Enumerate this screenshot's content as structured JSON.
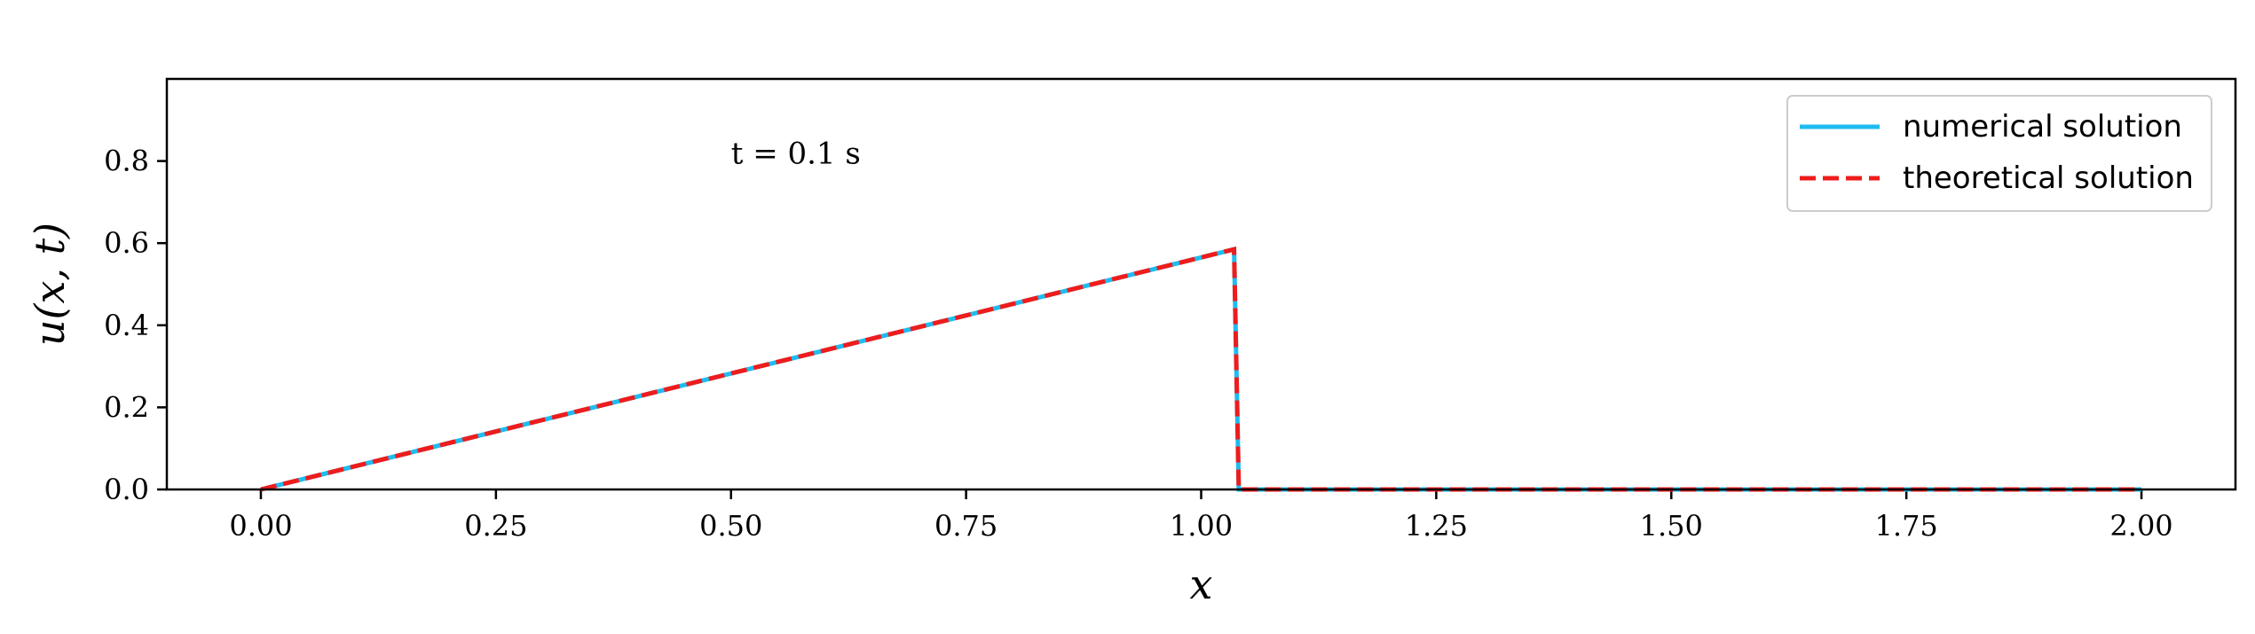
{
  "chart_data": {
    "type": "line",
    "xlabel": "x",
    "ylabel": "u(x, t)",
    "annotation": "t = 0.1 s",
    "annotation_at": {
      "x": 0.5,
      "y": 0.82
    },
    "xlim": [
      -0.1,
      2.1
    ],
    "ylim": [
      0.0,
      1.0
    ],
    "xticks": [
      0.0,
      0.25,
      0.5,
      0.75,
      1.0,
      1.25,
      1.5,
      1.75,
      2.0
    ],
    "xtick_labels": [
      "0.00",
      "0.25",
      "0.50",
      "0.75",
      "1.00",
      "1.25",
      "1.50",
      "1.75",
      "2.00"
    ],
    "yticks": [
      0.0,
      0.2,
      0.4,
      0.6,
      0.8
    ],
    "ytick_labels": [
      "0.0",
      "0.2",
      "0.4",
      "0.6",
      "0.8"
    ],
    "grid": false,
    "legend_position": "top-right",
    "series": [
      {
        "name": "numerical solution",
        "color": "#1ebcf0",
        "style": "solid",
        "x": [
          0.0,
          1.035,
          1.04,
          2.0
        ],
        "y": [
          0.0,
          0.585,
          0.0,
          0.0
        ]
      },
      {
        "name": "theoretical solution",
        "color": "#ee1c1c",
        "style": "dashed",
        "x": [
          0.0,
          1.035,
          1.04,
          2.0
        ],
        "y": [
          0.0,
          0.585,
          0.0,
          0.0
        ]
      }
    ]
  }
}
